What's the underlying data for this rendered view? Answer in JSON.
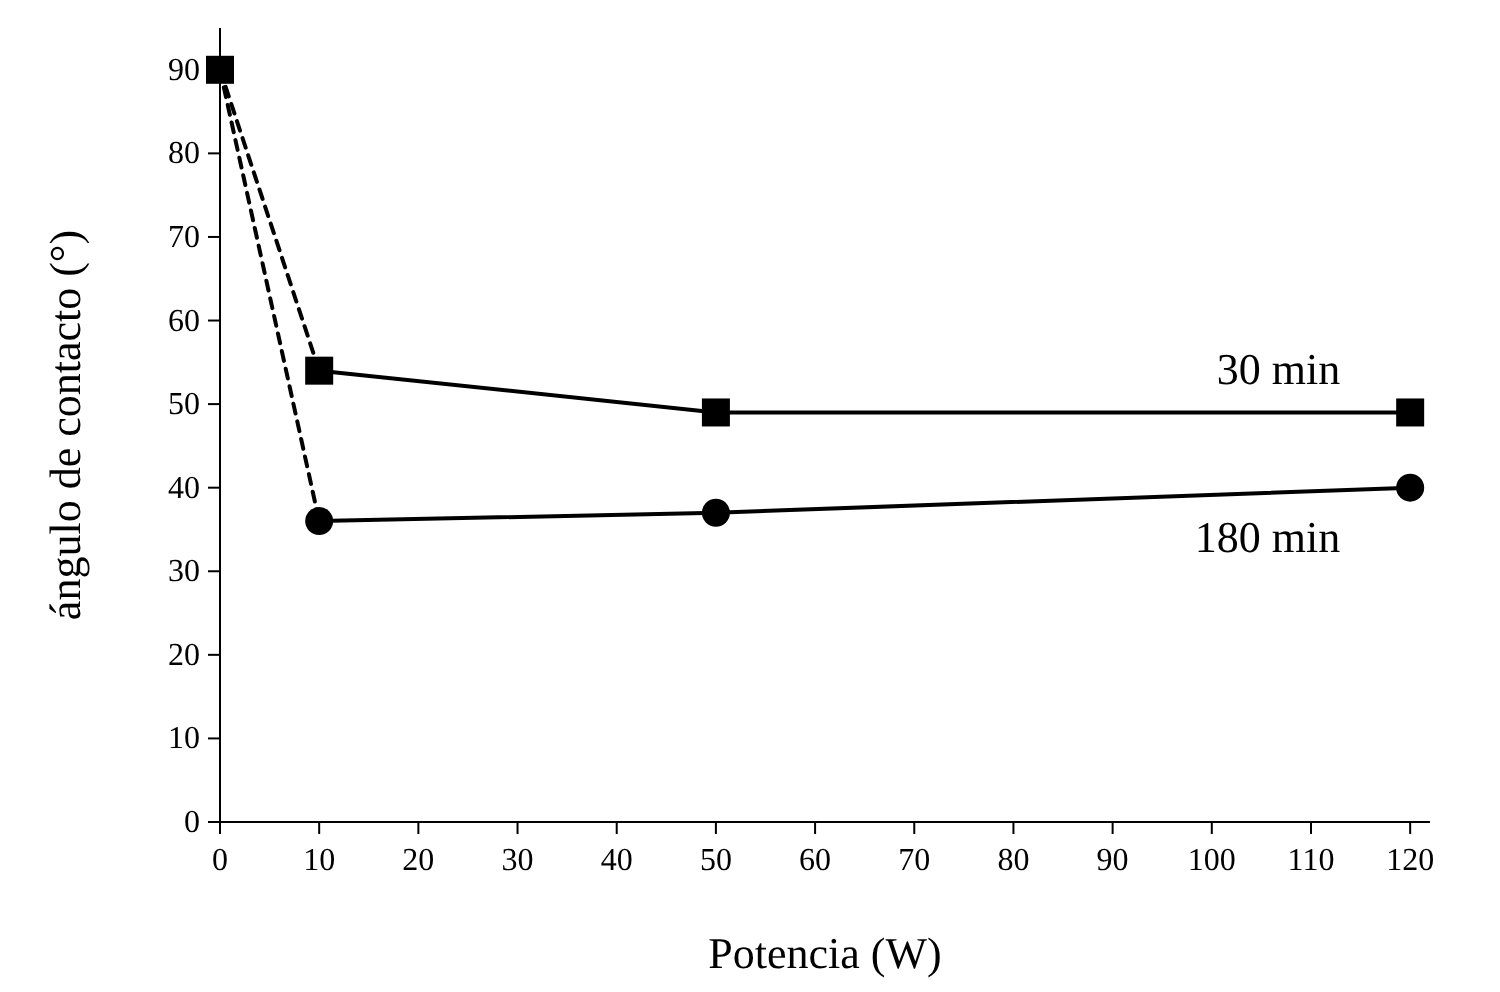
{
  "chart_data": {
    "type": "line",
    "xlabel": "Potencia (W)",
    "ylabel": "ángulo de contacto (°)",
    "xlim": [
      0,
      122
    ],
    "ylim": [
      0,
      95
    ],
    "xticks": [
      0,
      10,
      20,
      30,
      40,
      50,
      60,
      70,
      80,
      90,
      100,
      110,
      120
    ],
    "yticks": [
      0,
      10,
      20,
      30,
      40,
      50,
      60,
      70,
      80,
      90
    ],
    "series": [
      {
        "color": "#000000",
        "x": [
          0,
          10
        ],
        "values": [
          90,
          36
        ],
        "line_style": "dashed"
      },
      {
        "color": "#000000",
        "x": [
          0,
          10
        ],
        "values": [
          90,
          54
        ],
        "line_style": "dashed"
      },
      {
        "type": "scatter",
        "color": "#000000",
        "x": [
          0
        ],
        "values": [
          90
        ],
        "marker": "square"
      },
      {
        "name": "30 min",
        "color": "#000000",
        "x": [
          10,
          50,
          120
        ],
        "values": [
          54,
          49,
          49
        ],
        "line_style": "solid",
        "marker": "square"
      },
      {
        "name": "180 min",
        "color": "#000000",
        "x": [
          10,
          50,
          120
        ],
        "values": [
          36,
          37,
          40
        ],
        "line_style": "solid",
        "marker": "circle"
      }
    ]
  }
}
